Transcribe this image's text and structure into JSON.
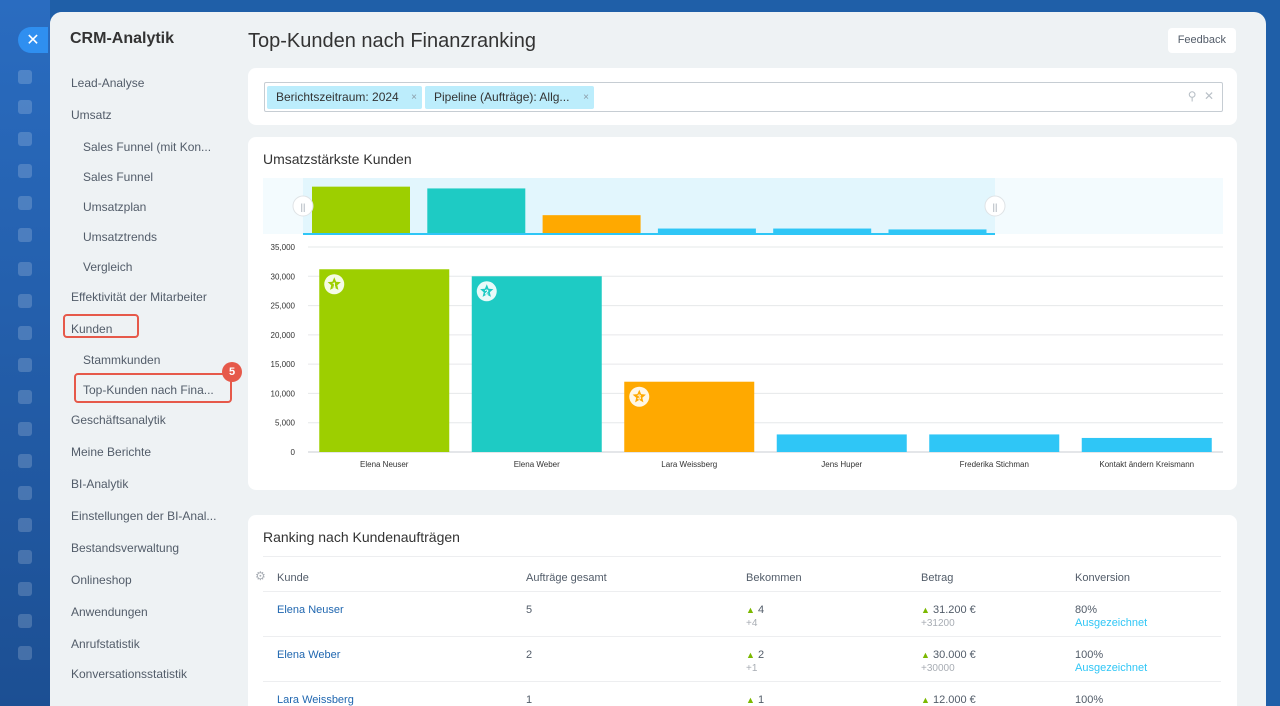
{
  "sidebar": {
    "title": "CRM-Analytik",
    "items": [
      {
        "label": "Lead-Analyse",
        "level": 0
      },
      {
        "label": "Umsatz",
        "level": 0
      },
      {
        "label": "Sales Funnel (mit Kon...",
        "level": 1
      },
      {
        "label": "Sales Funnel",
        "level": 1
      },
      {
        "label": "Umsatzplan",
        "level": 1
      },
      {
        "label": "Umsatztrends",
        "level": 1
      },
      {
        "label": "Vergleich",
        "level": 1
      },
      {
        "label": "Effektivität der Mitarbeiter",
        "level": 0
      },
      {
        "label": "Kunden",
        "level": 0
      },
      {
        "label": "Stammkunden",
        "level": 1
      },
      {
        "label": "Top-Kunden nach Fina...",
        "level": 1
      },
      {
        "label": "Geschäftsanalytik",
        "level": 0
      },
      {
        "label": "Meine Berichte",
        "level": 0
      },
      {
        "label": "BI-Analytik",
        "level": 0
      },
      {
        "label": "Einstellungen der BI-Anal...",
        "level": 0
      },
      {
        "label": "Bestandsverwaltung",
        "level": 0
      },
      {
        "label": "Onlineshop",
        "level": 0
      },
      {
        "label": "Anwendungen",
        "level": 0
      },
      {
        "label": "Anrufstatistik",
        "level": 0
      },
      {
        "label": "Konversationsstatistik",
        "level": 0
      }
    ],
    "step_badge": "5"
  },
  "header": {
    "title": "Top-Kunden nach Finanzranking",
    "feedback_label": "Feedback"
  },
  "filters": {
    "chips": [
      "Berichtszeitraum: 2024",
      "Pipeline (Aufträge): Allg..."
    ],
    "chip_close": "×"
  },
  "chart_data": {
    "type": "bar",
    "title": "Umsatzstärkste Kunden",
    "categories": [
      "Elena Neuser",
      "Elena Weber",
      "Lara Weissberg",
      "Jens Huper",
      "Frederika Stichman",
      "Kontakt ändern Kreismann"
    ],
    "values": [
      31200,
      30000,
      12000,
      3000,
      3000,
      2400
    ],
    "colors": [
      "#9dcf00",
      "#1ecbc4",
      "#ffa900",
      "#2fc6f6",
      "#2fc6f6",
      "#2fc6f6"
    ],
    "rank_badges": [
      "1",
      "2",
      "3"
    ],
    "ylim": [
      0,
      35000
    ],
    "yticks": [
      "0",
      "5,000",
      "10,000",
      "15,000",
      "20,000",
      "25,000",
      "30,000",
      "35,000"
    ],
    "grid": true
  },
  "table": {
    "title": "Ranking nach Kundenaufträgen",
    "columns": [
      "Kunde",
      "Aufträge gesamt",
      "Bekommen",
      "Betrag",
      "Konversion"
    ],
    "rows": [
      {
        "kunde": "Elena Neuser",
        "auftraege": "5",
        "bekommen": "4",
        "bekommen_delta": "+4",
        "betrag": "31.200 €",
        "betrag_delta": "+31200",
        "konversion": "80%",
        "status": "Ausgezeichnet"
      },
      {
        "kunde": "Elena Weber",
        "auftraege": "2",
        "bekommen": "2",
        "bekommen_delta": "+1",
        "betrag": "30.000 €",
        "betrag_delta": "+30000",
        "konversion": "100%",
        "status": "Ausgezeichnet"
      },
      {
        "kunde": "Lara Weissberg",
        "auftraege": "1",
        "bekommen": "1",
        "bekommen_delta": "",
        "betrag": "12.000 €",
        "betrag_delta": "",
        "konversion": "100%",
        "status": ""
      }
    ]
  },
  "colors": {
    "accent": "#2fc6f6",
    "highlight": "#e6594a",
    "link": "#2067b0",
    "positive": "#7bb800"
  },
  "icons": [
    "close-icon",
    "search-icon",
    "clear-icon",
    "gear-icon",
    "rank-star-icon",
    "arrow-up-icon"
  ]
}
